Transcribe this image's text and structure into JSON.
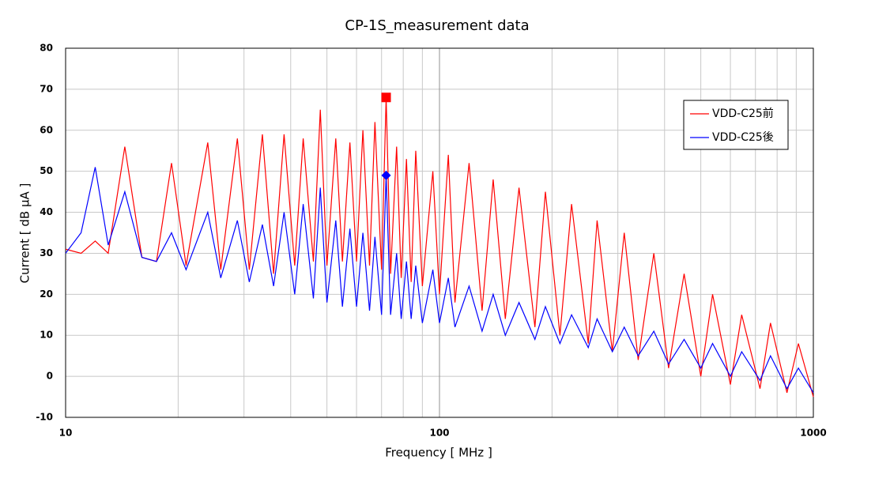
{
  "chart_data": {
    "type": "line",
    "title": "CP-1S_measurement data",
    "x_label": "Frequency [ MHz ]",
    "y_label": "Current [ dB μA ]",
    "xscale": "log",
    "xlim": [
      10,
      1000
    ],
    "xticks": [
      10,
      100,
      1000
    ],
    "xminor": [
      20,
      30,
      40,
      50,
      60,
      70,
      80,
      90,
      200,
      300,
      400,
      500,
      600,
      700,
      800,
      900
    ],
    "ylim": [
      -10,
      80
    ],
    "yticks": [
      -10,
      0,
      10,
      20,
      30,
      40,
      50,
      60,
      70,
      80
    ],
    "grid": true,
    "legend": "right",
    "x": [
      10,
      11,
      12,
      13,
      14.4,
      16,
      17.5,
      19.2,
      21,
      24,
      26,
      28.8,
      31,
      33.6,
      36,
      38.4,
      41,
      43.2,
      46,
      48,
      50,
      52.8,
      55,
      57.6,
      60,
      62.4,
      65,
      67.2,
      70,
      72,
      74,
      76.8,
      79,
      81.6,
      84,
      86.4,
      90,
      96,
      100,
      105.6,
      110,
      120,
      130,
      139.2,
      150,
      163.2,
      180,
      192,
      210,
      225.6,
      250,
      264,
      290,
      312,
      340,
      374.4,
      410,
      451.2,
      500,
      537.6,
      600,
      643.2,
      720,
      768,
      850,
      912,
      1000
    ],
    "series": [
      {
        "name": "VDD-C25前",
        "color": "#ff0000",
        "marker": {
          "x": 72,
          "y": 68,
          "shape": "square"
        },
        "values": [
          31,
          30,
          33,
          30,
          56,
          29,
          28,
          52,
          27,
          57,
          26,
          58,
          26,
          59,
          25,
          59,
          27,
          58,
          28,
          65,
          27,
          58,
          28,
          57,
          28,
          60,
          27,
          62,
          26,
          68,
          25,
          56,
          24,
          53,
          23,
          55,
          22,
          50,
          20,
          54,
          18,
          52,
          16,
          48,
          14,
          46,
          12,
          45,
          10,
          42,
          8,
          38,
          6,
          35,
          4,
          30,
          2,
          25,
          0,
          20,
          -2,
          15,
          -3,
          13,
          -4,
          8,
          -5
        ]
      },
      {
        "name": "VDD-C25後",
        "color": "#0000ff",
        "marker": {
          "x": 72,
          "y": 49,
          "shape": "diamond"
        },
        "values": [
          30,
          35,
          51,
          32,
          45,
          29,
          28,
          35,
          26,
          40,
          24,
          38,
          23,
          37,
          22,
          40,
          20,
          42,
          19,
          46,
          18,
          38,
          17,
          36,
          17,
          35,
          16,
          34,
          15,
          49,
          15,
          30,
          14,
          28,
          14,
          27,
          13,
          26,
          13,
          24,
          12,
          22,
          11,
          20,
          10,
          18,
          9,
          17,
          8,
          15,
          7,
          14,
          6,
          12,
          5,
          11,
          3,
          9,
          2,
          8,
          0,
          6,
          -1,
          5,
          -3,
          2,
          -4
        ]
      }
    ]
  }
}
